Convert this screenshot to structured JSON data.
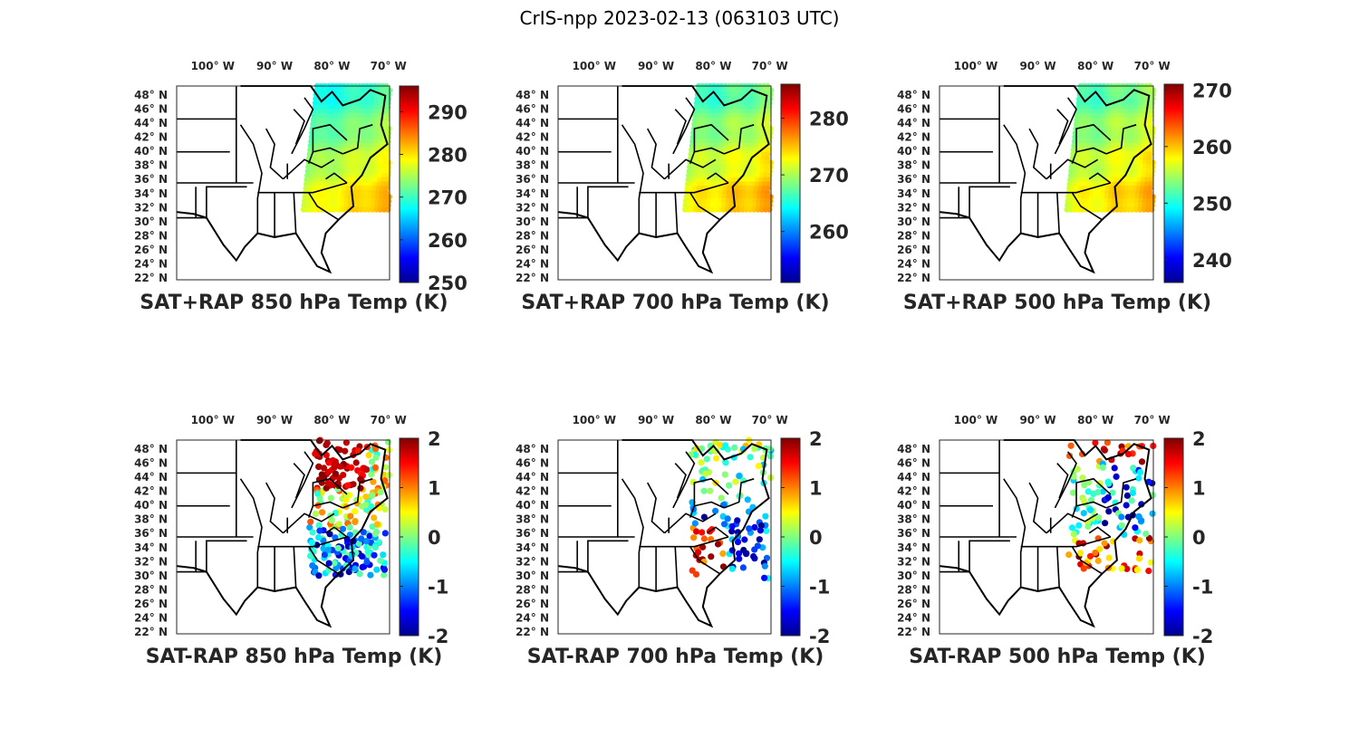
{
  "figure_title": "CrIS-npp 2023-02-13 (063103 UTC)",
  "chart_data": [
    {
      "type": "scatter",
      "title": "SAT+RAP 850 hPa Temp (K)",
      "xlabel": "",
      "ylabel": "",
      "x_ticks": [
        "100° W",
        "90° W",
        "80° W",
        "70° W"
      ],
      "y_ticks": [
        "48° N",
        "46° N",
        "44° N",
        "42° N",
        "40° N",
        "38° N",
        "36° N",
        "34° N",
        "32° N",
        "30° N",
        "28° N",
        "26° N",
        "24° N",
        "22° N"
      ],
      "colorbar": {
        "ticks": [
          "290",
          "280",
          "270",
          "260",
          "250"
        ],
        "min": 250,
        "max": 296,
        "colormap": "jet"
      },
      "field": {
        "mode": "swath",
        "base": 275,
        "north_cold": 20,
        "east_warm": 12
      },
      "legend": "none"
    },
    {
      "type": "scatter",
      "title": "SAT+RAP 700 hPa Temp (K)",
      "xlabel": "",
      "ylabel": "",
      "x_ticks": [
        "100° W",
        "90° W",
        "80° W",
        "70° W"
      ],
      "y_ticks": [
        "48° N",
        "46° N",
        "44° N",
        "42° N",
        "40° N",
        "38° N",
        "36° N",
        "34° N",
        "32° N",
        "30° N",
        "28° N",
        "26° N",
        "24° N",
        "22° N"
      ],
      "colorbar": {
        "ticks": [
          "280",
          "270",
          "260"
        ],
        "min": 251,
        "max": 286,
        "colormap": "jet"
      },
      "field": {
        "mode": "swath",
        "base": 271,
        "north_cold": 14,
        "east_warm": 8
      },
      "legend": "none"
    },
    {
      "type": "scatter",
      "title": "SAT+RAP 500 hPa Temp (K)",
      "xlabel": "",
      "ylabel": "",
      "x_ticks": [
        "100° W",
        "90° W",
        "80° W",
        "70° W"
      ],
      "y_ticks": [
        "48° N",
        "46° N",
        "44° N",
        "42° N",
        "40° N",
        "38° N",
        "36° N",
        "34° N",
        "32° N",
        "30° N",
        "28° N",
        "26° N",
        "24° N",
        "22° N"
      ],
      "colorbar": {
        "ticks": [
          "270",
          "260",
          "250",
          "240"
        ],
        "min": 236,
        "max": 271,
        "colormap": "jet"
      },
      "field": {
        "mode": "swath",
        "base": 256,
        "north_cold": 12,
        "east_warm": 9
      },
      "legend": "none"
    },
    {
      "type": "scatter",
      "title": "SAT-RAP 850 hPa Temp (K)",
      "xlabel": "",
      "ylabel": "",
      "x_ticks": [
        "100° W",
        "90° W",
        "80° W",
        "70° W"
      ],
      "y_ticks": [
        "48° N",
        "46° N",
        "44° N",
        "42° N",
        "40° N",
        "38° N",
        "36° N",
        "34° N",
        "32° N",
        "30° N",
        "28° N",
        "26° N",
        "24° N",
        "22° N"
      ],
      "colorbar": {
        "ticks": [
          "2",
          "1",
          "0",
          "-1",
          "-2"
        ],
        "min": -2,
        "max": 2,
        "colormap": "jet"
      },
      "field": {
        "mode": "diff",
        "seed": 11,
        "warm_region": "north"
      },
      "legend": "none"
    },
    {
      "type": "scatter",
      "title": "SAT-RAP 700 hPa Temp (K)",
      "xlabel": "",
      "ylabel": "",
      "x_ticks": [
        "100° W",
        "90° W",
        "80° W",
        "70° W"
      ],
      "y_ticks": [
        "48° N",
        "46° N",
        "44° N",
        "42° N",
        "40° N",
        "38° N",
        "36° N",
        "34° N",
        "32° N",
        "30° N",
        "28° N",
        "26° N",
        "24° N",
        "22° N"
      ],
      "colorbar": {
        "ticks": [
          "2",
          "1",
          "0",
          "-1",
          "-2"
        ],
        "min": -2,
        "max": 2,
        "colormap": "jet"
      },
      "field": {
        "mode": "diff",
        "seed": 23,
        "warm_region": "south"
      },
      "legend": "none"
    },
    {
      "type": "scatter",
      "title": "SAT-RAP 500 hPa Temp (K)",
      "xlabel": "",
      "ylabel": "",
      "x_ticks": [
        "100° W",
        "90° W",
        "80° W",
        "70° W"
      ],
      "y_ticks": [
        "48° N",
        "46° N",
        "44° N",
        "42° N",
        "40° N",
        "38° N",
        "36° N",
        "34° N",
        "32° N",
        "30° N",
        "28° N",
        "26° N",
        "24° N",
        "22° N"
      ],
      "colorbar": {
        "ticks": [
          "2",
          "1",
          "0",
          "-1",
          "-2"
        ],
        "min": -2,
        "max": 2,
        "colormap": "jet"
      },
      "field": {
        "mode": "diff",
        "seed": 37,
        "warm_region": "both"
      },
      "legend": "none"
    }
  ]
}
